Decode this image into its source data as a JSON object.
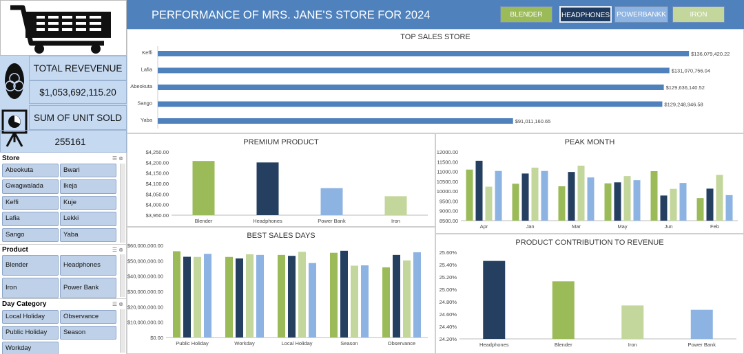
{
  "header": {
    "title": "PERFORMANCE OF MRS. JANE'S STORE FOR 2024",
    "buttons": [
      {
        "label": "BLENDER",
        "bg": "#9bbb59",
        "fg": "#ffffff"
      },
      {
        "label": "HEADPHONES",
        "bg": "#1f3a5f",
        "fg": "#ffffff"
      },
      {
        "label": "POWERBANKK",
        "bg": "#8db3e2",
        "fg": "#ffffff"
      },
      {
        "label": "IRON",
        "bg": "#c3d69b",
        "fg": "#ffffff"
      }
    ]
  },
  "kpi": {
    "revenue_label": "TOTAL REVEVENUE",
    "revenue_value": "$1,053,692,115.20",
    "units_label": "SUM OF UNIT SOLD",
    "units_value": "255161"
  },
  "slicers": {
    "store": {
      "title": "Store",
      "items": [
        "Abeokuta",
        "Bwari",
        "Gwagwalada",
        "Ikeja",
        "Keffi",
        "Kuje",
        "Lafia",
        "Lekki",
        "Sango",
        "Yaba"
      ]
    },
    "product": {
      "title": "Product",
      "items": [
        "Blender",
        "Headphones",
        "Iron",
        "Power Bank"
      ]
    },
    "day": {
      "title": "Day Category",
      "items": [
        "Local Holiday",
        "Observance",
        "Public Holiday",
        "Season",
        "Workday"
      ]
    }
  },
  "colors": {
    "blender": "#9bbb59",
    "headphones": "#243f60",
    "iron": "#c3d69b",
    "powerbank": "#8db3e2",
    "bar": "#4f81bd",
    "header": "#4f81bd"
  },
  "chart_data": [
    {
      "id": "top_sales",
      "type": "bar",
      "orientation": "horizontal",
      "title": "TOP SALES STORE",
      "categories": [
        "Keffi",
        "Lafia",
        "Abeokuta",
        "Sango",
        "Yaba"
      ],
      "values": [
        136079420.22,
        131070756.04,
        129636140.52,
        129248946.58,
        91011160.65
      ],
      "labels": [
        "$136,079,420.22",
        "$131,070,756.04",
        "$129,636,140.52",
        "$129,248,946.58",
        "$91,011,160.65"
      ],
      "xlim": [
        0,
        150000000
      ]
    },
    {
      "id": "premium",
      "type": "bar",
      "title": "PREMIUM PRODUCT",
      "categories": [
        "Blender",
        "Headphones",
        "Power Bank",
        "Iron"
      ],
      "values": [
        4207,
        4200,
        4078,
        4040
      ],
      "ylim": [
        3950,
        4250
      ],
      "yticks": [
        "$3,950.00",
        "$4,000.00",
        "$4,050.00",
        "$4,100.00",
        "$4,150.00",
        "$4,200.00",
        "$4,250.00"
      ]
    },
    {
      "id": "peak_month",
      "type": "bar",
      "title": "PEAK MONTH",
      "categories": [
        "Apr",
        "Jan",
        "Mar",
        "May",
        "Jun",
        "Feb"
      ],
      "series": [
        {
          "values": [
            11100,
            10380,
            10250,
            10400,
            11020,
            9650
          ]
        },
        {
          "values": [
            11550,
            10900,
            10980,
            10450,
            9780,
            10130
          ]
        },
        {
          "values": [
            10230,
            11200,
            11300,
            10770,
            10120,
            10830
          ]
        },
        {
          "values": [
            11030,
            11030,
            10700,
            10560,
            10420,
            9800
          ]
        }
      ],
      "ylim": [
        8500,
        12000
      ],
      "yticks": [
        "8500.00",
        "9000.00",
        "9500.00",
        "10000.00",
        "10500.00",
        "11000.00",
        "11500.00",
        "12000.00"
      ]
    },
    {
      "id": "best_days",
      "type": "bar",
      "title": "BEST SALES DAYS",
      "categories": [
        "Public Holiday",
        "Workday",
        "Local Holiday",
        "Season",
        "Observance"
      ],
      "series": [
        {
          "values": [
            56200000,
            52500000,
            53800000,
            55200000,
            45700000
          ]
        },
        {
          "values": [
            52600000,
            51500000,
            53200000,
            56500000,
            53800000
          ]
        },
        {
          "values": [
            52500000,
            54200000,
            55800000,
            46800000,
            50200000
          ]
        },
        {
          "values": [
            54500000,
            53800000,
            48500000,
            47000000,
            55500000
          ]
        }
      ],
      "ylim": [
        0,
        60000000
      ],
      "yticks": [
        "$0.00",
        "$10,000,000.00",
        "$20,000,000.00",
        "$30,000,000.00",
        "$40,000,000.00",
        "$50,000,000.00",
        "$60,000,000.00"
      ]
    },
    {
      "id": "contribution",
      "type": "bar",
      "title": "PRODUCT CONTRIBUTION TO REVENUE",
      "categories": [
        "Headphones",
        "Blender",
        "Iron",
        "Power Bank"
      ],
      "values": [
        25.46,
        25.13,
        24.74,
        24.67
      ],
      "ylim": [
        24.2,
        25.6
      ],
      "yticks": [
        "24.20%",
        "24.40%",
        "24.60%",
        "24.80%",
        "25.00%",
        "25.20%",
        "25.40%",
        "25.60%"
      ]
    }
  ]
}
